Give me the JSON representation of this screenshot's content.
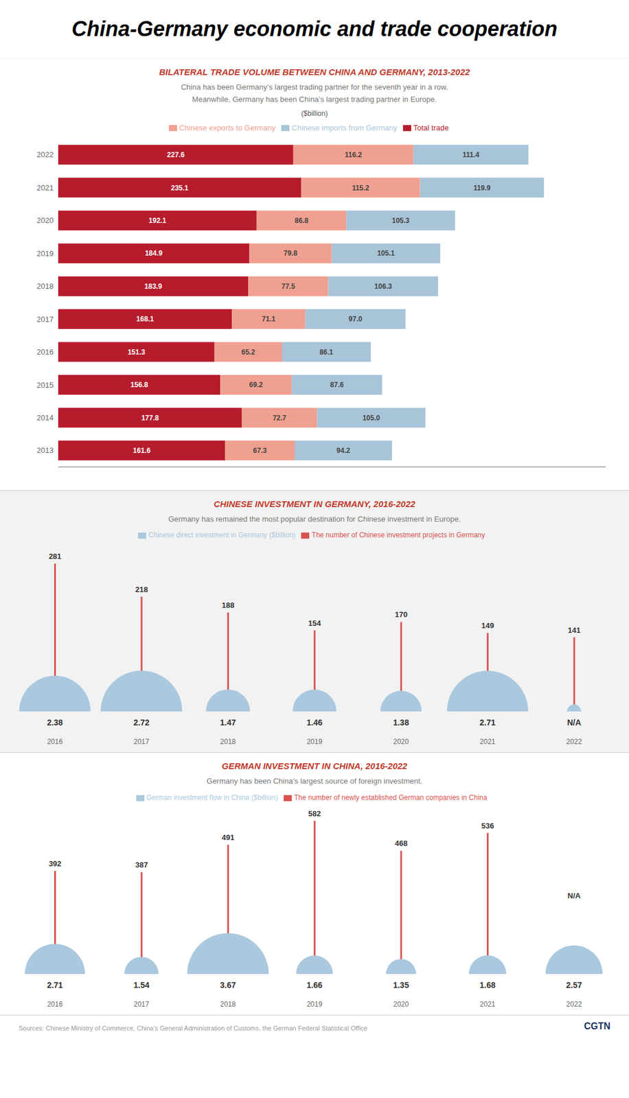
{
  "title": "China-Germany economic and trade cooperation",
  "annotations": [
    "Sources: Chinese Ministry of Commerce, China’s General Administration of Customs, the German Federal Statistical Office",
    "CGTN"
  ],
  "chart_data": [
    {
      "type": "bar",
      "orientation": "horizontal",
      "stacked": true,
      "data_labels": true,
      "legend": "top",
      "tick_labels": "y",
      "title": "BILATERAL TRADE VOLUME BETWEEN CHINA AND GERMANY, 2013-2022",
      "subtitle": "China has been Germany’s largest trading partner for the seventh year in a row.\nMeanwhile, Germany has been China’s largest trading partner in Europe.",
      "annotations": [
        "($billion)"
      ],
      "categories": [
        "2022",
        "2021",
        "2020",
        "2019",
        "2018",
        "2017",
        "2016",
        "2015",
        "2014",
        "2013"
      ],
      "xlim": [
        0,
        530
      ],
      "series": [
        {
          "name": "Total trade",
          "color": "#b71c2c",
          "values": [
            227.6,
            235.1,
            192.1,
            184.9,
            183.9,
            168.1,
            151.3,
            156.8,
            177.8,
            161.6
          ]
        },
        {
          "name": "Chinese exports to Germany",
          "color": "#f0a090",
          "values": [
            116.2,
            115.2,
            86.8,
            79.8,
            77.5,
            71.1,
            65.2,
            69.2,
            72.7,
            67.3
          ]
        },
        {
          "name": "Chinese imports from Germany",
          "color": "#a8c4d8",
          "values": [
            111.4,
            119.9,
            105.3,
            105.1,
            106.3,
            97.0,
            86.1,
            87.6,
            105.0,
            94.2
          ],
          "value_labels": [
            "111.4",
            "119.9",
            "105.3",
            "105.1",
            "106.3",
            "97.0",
            "86.1",
            "87.6",
            "105.0",
            "94.2"
          ]
        }
      ]
    },
    {
      "type": "bubble",
      "data_labels": true,
      "legend": "top",
      "tick_labels": "x",
      "title": "CHINESE INVESTMENT IN GERMANY, 2016-2022",
      "subtitle": "Germany has remained the most popular destination for Chinese investment in Europe.",
      "categories": [
        "2016",
        "2017",
        "2018",
        "2019",
        "2020",
        "2021",
        "2022"
      ],
      "ylim": [
        0,
        300
      ],
      "series": [
        {
          "name": "Chinese direct investment in Germany ($billion)",
          "type": "bubble",
          "color": "#aac8de",
          "values": [
            2.38,
            2.72,
            1.47,
            1.46,
            1.38,
            2.71,
            null
          ],
          "value_labels": [
            "2.38",
            "2.72",
            "1.47",
            "1.46",
            "1.38",
            "2.71",
            "N/A"
          ]
        },
        {
          "name": "The number of Chinese investment projects in Germany",
          "type": "bar",
          "color": "#d9534f",
          "values": [
            281,
            218,
            188,
            154,
            170,
            149,
            141
          ]
        }
      ]
    },
    {
      "type": "bubble",
      "data_labels": true,
      "legend": "top",
      "tick_labels": "x",
      "title": "GERMAN INVESTMENT IN CHINA, 2016-2022",
      "subtitle": "Germany has been China’s largest source of foreign investment.",
      "categories": [
        "2016",
        "2017",
        "2018",
        "2019",
        "2020",
        "2021",
        "2022"
      ],
      "ylim": [
        0,
        600
      ],
      "series": [
        {
          "name": "German investment flow in China ($billion)",
          "type": "bubble",
          "color": "#aac8de",
          "values": [
            2.71,
            1.54,
            3.67,
            1.66,
            1.35,
            1.68,
            2.57
          ]
        },
        {
          "name": "The number of newly established German companies in China",
          "type": "bar",
          "color": "#d9534f",
          "values": [
            392,
            387,
            491,
            582,
            468,
            536,
            null
          ],
          "value_labels": [
            "392",
            "387",
            "491",
            "582",
            "468",
            "536",
            "N/A"
          ]
        }
      ]
    }
  ]
}
